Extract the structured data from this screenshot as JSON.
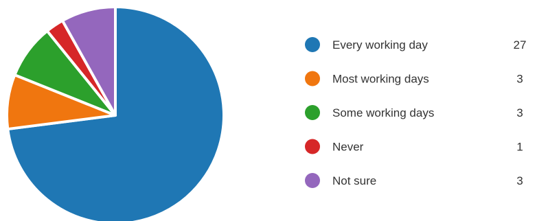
{
  "chart_data": {
    "type": "pie",
    "title": "",
    "categories": [
      "Every working day",
      "Most working days",
      "Some working days",
      "Never",
      "Not sure"
    ],
    "values": [
      27,
      3,
      3,
      1,
      3
    ],
    "colors": [
      "#1f77b4",
      "#f0760f",
      "#2ca02c",
      "#d62728",
      "#9467bd"
    ],
    "start_angle_deg": 0,
    "direction": "clockwise",
    "legend_position": "right"
  }
}
